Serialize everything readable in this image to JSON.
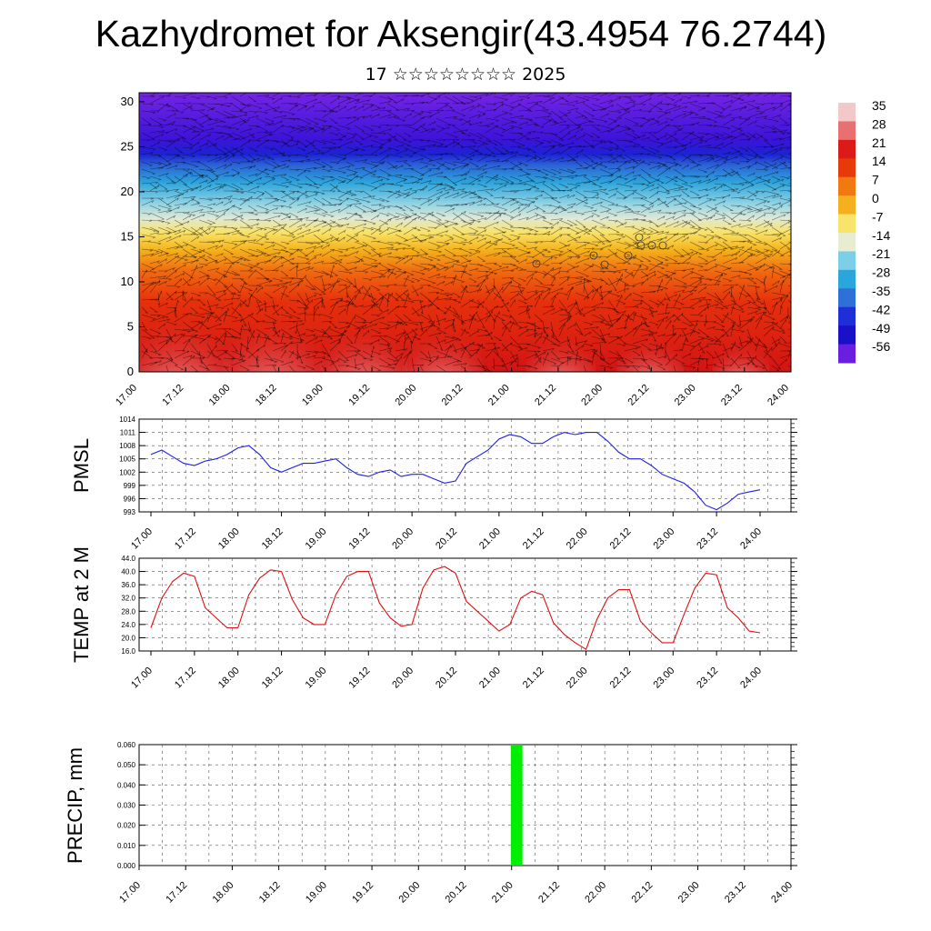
{
  "title": "Kazhydromet for Aksengir(43.4954 76.2744)",
  "subtitle": "17 ☆☆☆☆☆☆☆☆ 2025",
  "colors": {
    "pmsl_line": "#1f1fe6",
    "temp_line": "#e01010",
    "precip_bar": "#00ee00",
    "grid": "#555555"
  },
  "chart_data": [
    {
      "type": "heatmap",
      "name": "vertical cross-section (temperature with wind vectors)",
      "x_ticks": [
        "17.00",
        "17.12",
        "18.00",
        "18.12",
        "19.00",
        "19.12",
        "20.00",
        "20.12",
        "21.00",
        "21.12",
        "22.00",
        "22.12",
        "23.00",
        "23.12",
        "24.00"
      ],
      "y_ticks": [
        "0",
        "5",
        "10",
        "15",
        "20",
        "25",
        "30"
      ],
      "ylim": [
        0,
        31
      ],
      "colorbar_labels": [
        "35",
        "28",
        "21",
        "14",
        "7",
        "0",
        "-7",
        "-14",
        "-21",
        "-28",
        "-35",
        "-42",
        "-49",
        "-56"
      ],
      "colorbar_colors": [
        "#f2c8c8",
        "#e87070",
        "#dc1a1a",
        "#e63a0a",
        "#f07a10",
        "#f5b020",
        "#f8e46a",
        "#e8ecd0",
        "#7ccfe6",
        "#2aa6dc",
        "#2f6fd8",
        "#1f2fd8",
        "#1a10c8",
        "#6a1ee0"
      ],
      "ylabel": "",
      "xlabel": ""
    },
    {
      "type": "line",
      "ylabel": "PMSL",
      "y_ticks": [
        "1014",
        "1011",
        "1008",
        "1005",
        "1002",
        "999",
        "996",
        "993"
      ],
      "ylim": [
        993,
        1014
      ],
      "x_ticks": [
        "17.00",
        "17.12",
        "18.00",
        "18.12",
        "19.00",
        "19.12",
        "20.00",
        "20.12",
        "21.00",
        "21.12",
        "22.00",
        "22.12",
        "23.00",
        "23.12",
        "24.00"
      ],
      "xlim": [
        0,
        168
      ],
      "x": [
        0,
        3,
        6,
        9,
        12,
        15,
        18,
        21,
        24,
        27,
        30,
        33,
        36,
        39,
        42,
        45,
        48,
        51,
        54,
        57,
        60,
        63,
        66,
        69,
        72,
        75,
        78,
        81,
        84,
        87,
        90,
        93,
        96,
        99,
        102,
        105,
        108,
        111,
        114,
        117,
        120,
        123,
        126,
        129,
        132,
        135,
        138,
        141,
        144,
        147,
        150,
        153,
        156,
        159,
        162,
        165,
        168
      ],
      "values": [
        1006,
        1007,
        1005.5,
        1004,
        1003.5,
        1004.5,
        1005,
        1006,
        1007.5,
        1008,
        1006,
        1003,
        1002,
        1003,
        1004,
        1004,
        1004.5,
        1005,
        1003,
        1001.5,
        1001,
        1002,
        1002.5,
        1001,
        1001.5,
        1001.5,
        1000.5,
        999.5,
        1000,
        1004,
        1005.5,
        1007,
        1009.5,
        1010.5,
        1010,
        1008.5,
        1008.5,
        1010,
        1011,
        1010.5,
        1011,
        1011,
        1009,
        1006.5,
        1005,
        1005,
        1003.5,
        1001.5,
        1000.5,
        999.5,
        997.5,
        994.5,
        993.5,
        995,
        997,
        997.5,
        998
      ]
    },
    {
      "type": "line",
      "ylabel": "TEMP at 2 M",
      "y_ticks": [
        "44.0",
        "40.0",
        "36.0",
        "32.0",
        "28.0",
        "24.0",
        "20.0",
        "16.0"
      ],
      "ylim": [
        16,
        44
      ],
      "x_ticks": [
        "17.00",
        "17.12",
        "18.00",
        "18.12",
        "19.00",
        "19.12",
        "20.00",
        "20.12",
        "21.00",
        "21.12",
        "22.00",
        "22.12",
        "23.00",
        "23.12",
        "24.00"
      ],
      "xlim": [
        0,
        168
      ],
      "x": [
        0,
        3,
        6,
        9,
        12,
        15,
        18,
        21,
        24,
        27,
        30,
        33,
        36,
        39,
        42,
        45,
        48,
        51,
        54,
        57,
        60,
        63,
        66,
        69,
        72,
        75,
        78,
        81,
        84,
        87,
        90,
        93,
        96,
        99,
        102,
        105,
        108,
        111,
        114,
        117,
        120,
        123,
        126,
        129,
        132,
        135,
        138,
        141,
        144,
        147,
        150,
        153,
        156,
        159,
        162,
        165,
        168
      ],
      "values": [
        23,
        32,
        37,
        39.5,
        38.5,
        29,
        26,
        23,
        23,
        33,
        38,
        40.5,
        40,
        31.5,
        26,
        24,
        24,
        33,
        38.5,
        40,
        40,
        30.5,
        26,
        23.5,
        24,
        35,
        40.5,
        41.5,
        39.5,
        31,
        28,
        25,
        22,
        24,
        32,
        34,
        33,
        24.5,
        21,
        18.5,
        16.5,
        25.5,
        32,
        34.5,
        34.5,
        25,
        21.5,
        18.5,
        18.5,
        27,
        35,
        39.5,
        39,
        29,
        26,
        22,
        21.5
      ]
    },
    {
      "type": "bar",
      "ylabel": "PRECIP, mm",
      "y_ticks": [
        "0.060",
        "0.050",
        "0.040",
        "0.030",
        "0.020",
        "0.010",
        "0.000"
      ],
      "ylim": [
        0,
        0.06
      ],
      "x_ticks": [
        "17.00",
        "17.12",
        "18.00",
        "18.12",
        "19.00",
        "19.12",
        "20.00",
        "20.12",
        "21.00",
        "21.12",
        "22.00",
        "22.12",
        "23.00",
        "23.12",
        "24.00"
      ],
      "xlim": [
        0,
        168
      ],
      "bars": [
        {
          "x": 96,
          "width": 3,
          "value": 0.06
        }
      ]
    }
  ]
}
